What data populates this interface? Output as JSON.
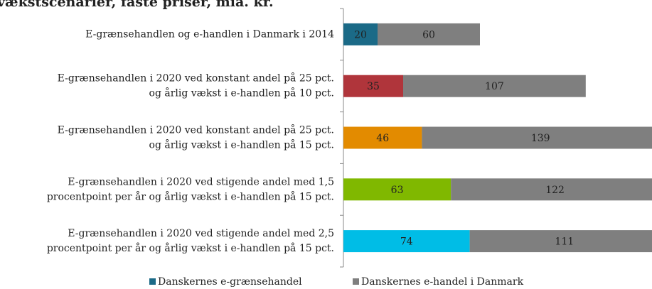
{
  "chart_data": {
    "type": "stacked-bar-horizontal",
    "title": "vækstscenarier, faste priser, mia. kr.",
    "categories": [
      "E-grænsehandlen og e-handlen i Danmark i 2014",
      "E-grænsehandlen i 2020 ved konstant andel på 25 pct.\nog årlig vækst i e-handlen på 10 pct.",
      "E-grænsehandlen i 2020 ved konstant andel på 25 pct.\nog årlig vækst i e-handlen på 15 pct.",
      "E-grænsehandlen i 2020 ved stigende andel med 1,5\nprocentpoint per år og årlig vækst i e-handlen på 15 pct.",
      "E-grænsehandlen i 2020 ved stigende andel med 2,5\nprocentpoint per år og årlig vækst i e-handlen på 15 pct."
    ],
    "series": [
      {
        "name": "Danskernes e-grænsehandel",
        "color": "#1b6a87",
        "colors": [
          "#1b6a87",
          "#b0353b",
          "#e38b00",
          "#80b800",
          "#00bde6"
        ],
        "values": [
          20,
          35,
          46,
          63,
          74
        ]
      },
      {
        "name": "Danskernes e-handel i Danmark",
        "color": "#7f7f7f",
        "values": [
          60,
          107,
          139,
          122,
          111
        ]
      }
    ]
  }
}
